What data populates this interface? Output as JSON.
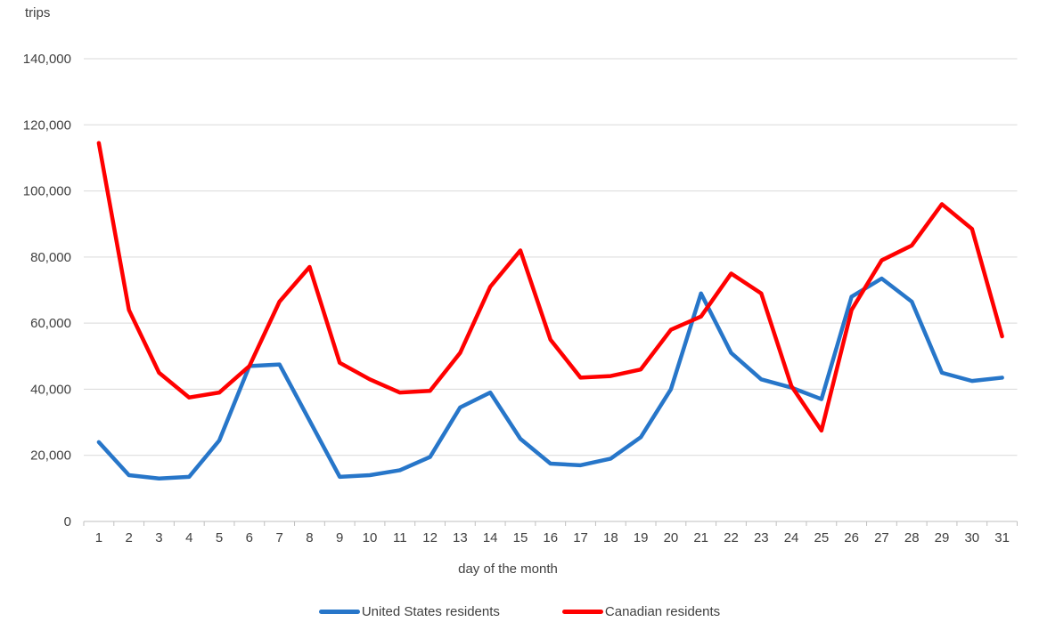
{
  "page": {
    "background": "#FFFFFF"
  },
  "chart": {
    "y_axis_title": "trips",
    "x_axis_title": "day of the month",
    "y_tick_labels": [
      "0",
      "20,000",
      "40,000",
      "60,000",
      "80,000",
      "100,000",
      "120,000",
      "140,000"
    ],
    "grid_color": "#D9D9D9",
    "axis_color": "#BFBFBF",
    "text_color": "#404040"
  },
  "legend": {
    "items": [
      {
        "label": "United States residents",
        "color": "#2776C9"
      },
      {
        "label": "Canadian residents",
        "color": "#FF0000"
      }
    ]
  },
  "chart_data": {
    "type": "line",
    "title": "trips",
    "xlabel": "day of the month",
    "ylabel": "trips",
    "x": [
      1,
      2,
      3,
      4,
      5,
      6,
      7,
      8,
      9,
      10,
      11,
      12,
      13,
      14,
      15,
      16,
      17,
      18,
      19,
      20,
      21,
      22,
      23,
      24,
      25,
      26,
      27,
      28,
      29,
      30,
      31
    ],
    "ylim": [
      0,
      140000
    ],
    "y_tick_step": 20000,
    "grid": true,
    "legend_position": "bottom",
    "series": [
      {
        "name": "United States residents",
        "color": "#2776C9",
        "values": [
          24000,
          14000,
          13000,
          13500,
          24500,
          47000,
          47500,
          30500,
          13500,
          14000,
          15500,
          19500,
          34500,
          39000,
          25000,
          17500,
          17000,
          19000,
          25500,
          40000,
          69000,
          51000,
          43000,
          40500,
          37000,
          68000,
          73500,
          66500,
          45000,
          42500,
          43500
        ]
      },
      {
        "name": "Canadian residents",
        "color": "#FF0000",
        "values": [
          114500,
          64000,
          45000,
          37500,
          39000,
          47000,
          66500,
          77000,
          48000,
          43000,
          39000,
          39500,
          51000,
          71000,
          82000,
          55000,
          43500,
          44000,
          46000,
          58000,
          62000,
          75000,
          69000,
          41000,
          27500,
          64000,
          79000,
          83500,
          96000,
          88500,
          56000
        ]
      }
    ]
  }
}
